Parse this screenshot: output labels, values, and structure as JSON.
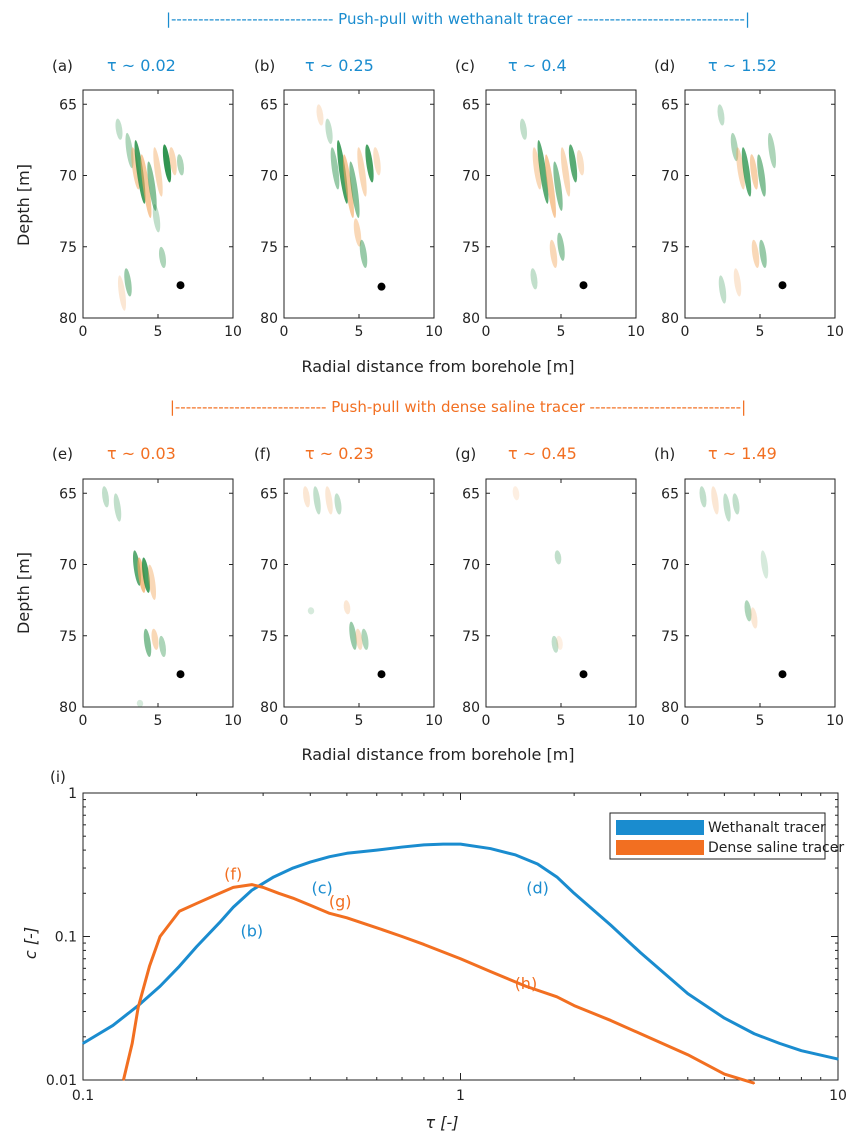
{
  "colors": {
    "blue": "#1a8ccf",
    "orange": "#f26f21",
    "green": "#1b8a3e",
    "tan": "#f2a860",
    "axis": "#222222"
  },
  "sections": [
    {
      "title": "|------------------------------ Push-pull with wethanalt tracer -------------------------------|",
      "color": "#1a8ccf"
    },
    {
      "title": "|---------------------------- Push-pull with dense saline tracer ----------------------------|",
      "color": "#f26f21"
    }
  ],
  "panels": [
    {
      "letter": "(a)",
      "tau": "τ ~ 0.02",
      "tau_color": "#1a8ccf",
      "marker": [
        6.5,
        77.7
      ]
    },
    {
      "letter": "(b)",
      "tau": "τ ~ 0.25",
      "tau_color": "#1a8ccf",
      "marker": [
        6.5,
        77.8
      ]
    },
    {
      "letter": "(c)",
      "tau": "τ ~ 0.4",
      "tau_color": "#1a8ccf",
      "marker": [
        6.5,
        77.7
      ]
    },
    {
      "letter": "(d)",
      "tau": "τ ~ 1.52",
      "tau_color": "#1a8ccf",
      "marker": [
        6.5,
        77.7
      ]
    },
    {
      "letter": "(e)",
      "tau": "τ ~ 0.03",
      "tau_color": "#f26f21",
      "marker": [
        6.5,
        77.7
      ]
    },
    {
      "letter": "(f)",
      "tau": "τ ~ 0.23",
      "tau_color": "#f26f21",
      "marker": [
        6.5,
        77.7
      ]
    },
    {
      "letter": "(g)",
      "tau": "τ ~ 0.45",
      "tau_color": "#f26f21",
      "marker": [
        6.5,
        77.7
      ]
    },
    {
      "letter": "(h)",
      "tau": "τ ~ 1.49",
      "tau_color": "#f26f21",
      "marker": [
        6.5,
        77.7
      ]
    }
  ],
  "panel_axes": {
    "ylabel": "Depth [m]",
    "xlabel": "Radial distance from borehole [m]",
    "xticks": [
      "0",
      "5",
      "10"
    ],
    "yticks": [
      "65",
      "70",
      "75",
      "80"
    ],
    "xlim": [
      0,
      10
    ],
    "ylim": [
      80,
      64
    ]
  },
  "chart_data": [
    {
      "type": "line",
      "label": "(i)",
      "xlabel": "τ  [-]",
      "ylabel": "c  [-]",
      "xscale": "log",
      "yscale": "log",
      "xlim": [
        0.1,
        10
      ],
      "ylim": [
        0.01,
        1
      ],
      "xticks": [
        "0.1",
        "1",
        "10"
      ],
      "yticks": [
        "0.01",
        "0.1",
        "1"
      ],
      "legend_position": "top-right",
      "series": [
        {
          "name": "Wethanalt tracer",
          "color": "#1a8ccf",
          "x": [
            0.1,
            0.12,
            0.14,
            0.16,
            0.18,
            0.2,
            0.23,
            0.25,
            0.28,
            0.32,
            0.36,
            0.4,
            0.45,
            0.5,
            0.6,
            0.7,
            0.8,
            0.9,
            1.0,
            1.2,
            1.4,
            1.6,
            1.8,
            2.0,
            2.5,
            3.0,
            4.0,
            5.0,
            6.0,
            7.0,
            8.0,
            10.0
          ],
          "y": [
            0.018,
            0.024,
            0.033,
            0.045,
            0.062,
            0.085,
            0.125,
            0.16,
            0.21,
            0.26,
            0.3,
            0.33,
            0.36,
            0.38,
            0.4,
            0.42,
            0.435,
            0.44,
            0.44,
            0.41,
            0.37,
            0.32,
            0.26,
            0.2,
            0.12,
            0.077,
            0.04,
            0.027,
            0.021,
            0.018,
            0.016,
            0.014
          ]
        },
        {
          "name": "Dense saline tracer",
          "color": "#f26f21",
          "x": [
            0.128,
            0.135,
            0.14,
            0.15,
            0.16,
            0.18,
            0.2,
            0.22,
            0.25,
            0.28,
            0.3,
            0.33,
            0.36,
            0.4,
            0.45,
            0.5,
            0.6,
            0.7,
            0.8,
            1.0,
            1.2,
            1.49,
            1.8,
            2.0,
            2.5,
            3.0,
            4.0,
            5.0,
            6.0
          ],
          "y": [
            0.01,
            0.018,
            0.032,
            0.062,
            0.1,
            0.15,
            0.17,
            0.19,
            0.22,
            0.23,
            0.22,
            0.2,
            0.185,
            0.165,
            0.145,
            0.135,
            0.115,
            0.1,
            0.088,
            0.07,
            0.057,
            0.045,
            0.038,
            0.033,
            0.026,
            0.021,
            0.015,
            0.011,
            0.0095
          ]
        }
      ],
      "annotations": [
        {
          "text": "(b)",
          "x": 0.28,
          "y": 0.1,
          "color": "#1a8ccf"
        },
        {
          "text": "(c)",
          "x": 0.43,
          "y": 0.2,
          "color": "#1a8ccf"
        },
        {
          "text": "(d)",
          "x": 1.6,
          "y": 0.2,
          "color": "#1a8ccf"
        },
        {
          "text": "(f)",
          "x": 0.25,
          "y": 0.25,
          "color": "#f26f21"
        },
        {
          "text": "(g)",
          "x": 0.48,
          "y": 0.16,
          "color": "#f26f21"
        },
        {
          "text": "(h)",
          "x": 1.49,
          "y": 0.043,
          "color": "#f26f21"
        }
      ]
    }
  ]
}
